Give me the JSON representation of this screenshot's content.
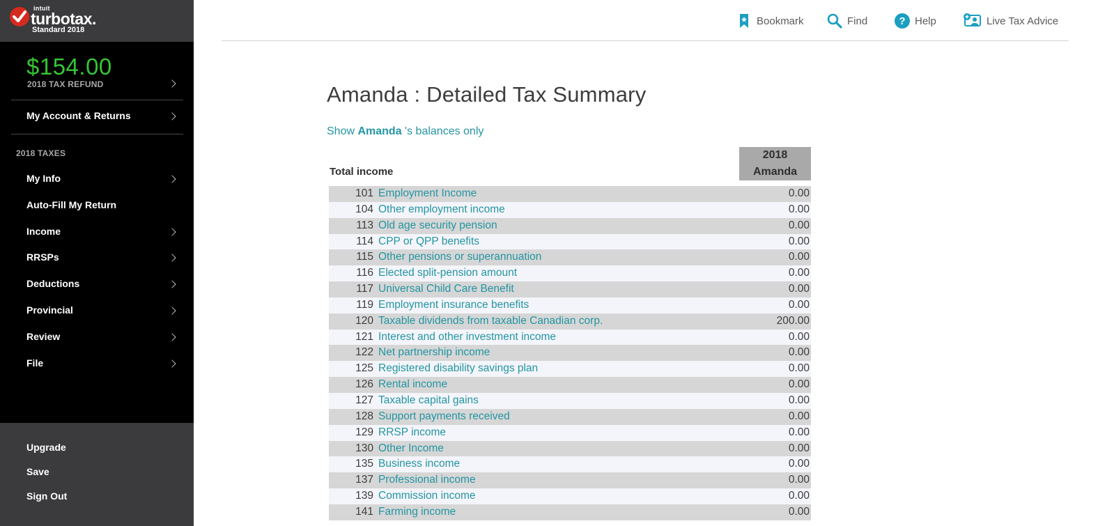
{
  "brand": {
    "intuit": "intuit",
    "product": "turbotax.",
    "edition": "Standard 2018",
    "accent_red": "#d52b1e"
  },
  "refund": {
    "amount": "$154.00",
    "label": "2018 TAX REFUND",
    "color": "#35c534"
  },
  "sidebar": {
    "account_label": "My Account & Returns",
    "section_title": "2018 TAXES",
    "items": [
      {
        "label": "My Info",
        "chevron": true
      },
      {
        "label": "Auto-Fill My Return",
        "chevron": false
      },
      {
        "label": "Income",
        "chevron": true
      },
      {
        "label": "RRSPs",
        "chevron": true
      },
      {
        "label": "Deductions",
        "chevron": true
      },
      {
        "label": "Provincial",
        "chevron": true
      },
      {
        "label": "Review",
        "chevron": true
      },
      {
        "label": "File",
        "chevron": true
      }
    ],
    "bottom": [
      {
        "label": "Upgrade"
      },
      {
        "label": "Save"
      },
      {
        "label": "Sign Out"
      }
    ]
  },
  "toolbar": {
    "bookmark": "Bookmark",
    "find": "Find",
    "help": "Help",
    "live_advice": "Live Tax Advice",
    "icon_color": "#1a9fc1"
  },
  "main": {
    "title_name": "Amanda",
    "title_sep": " : ",
    "title_rest": "Detailed Tax Summary",
    "show_prefix": "Show ",
    "show_name": "Amanda",
    "show_suffix": " 's balances only",
    "link_color": "#2495a2"
  },
  "table": {
    "section_label": "Total income",
    "column_year": "2018",
    "column_name": "Amanda",
    "rows": [
      {
        "code": "101",
        "desc": "Employment Income",
        "amount": "0.00"
      },
      {
        "code": "104",
        "desc": "Other employment income",
        "amount": "0.00"
      },
      {
        "code": "113",
        "desc": "Old age security pension",
        "amount": "0.00"
      },
      {
        "code": "114",
        "desc": "CPP or QPP benefits",
        "amount": "0.00"
      },
      {
        "code": "115",
        "desc": "Other pensions or superannuation",
        "amount": "0.00"
      },
      {
        "code": "116",
        "desc": "Elected split-pension amount",
        "amount": "0.00"
      },
      {
        "code": "117",
        "desc": "Universal Child Care Benefit",
        "amount": "0.00"
      },
      {
        "code": "119",
        "desc": "Employment insurance benefits",
        "amount": "0.00"
      },
      {
        "code": "120",
        "desc": "Taxable dividends from taxable Canadian corp.",
        "amount": "200.00"
      },
      {
        "code": "121",
        "desc": "Interest and other investment income",
        "amount": "0.00"
      },
      {
        "code": "122",
        "desc": "Net partnership income",
        "amount": "0.00"
      },
      {
        "code": "125",
        "desc": "Registered disability savings plan",
        "amount": "0.00"
      },
      {
        "code": "126",
        "desc": "Rental income",
        "amount": "0.00"
      },
      {
        "code": "127",
        "desc": "Taxable capital gains",
        "amount": "0.00"
      },
      {
        "code": "128",
        "desc": "Support payments received",
        "amount": "0.00"
      },
      {
        "code": "129",
        "desc": "RRSP income",
        "amount": "0.00"
      },
      {
        "code": "130",
        "desc": "Other Income",
        "amount": "0.00"
      },
      {
        "code": "135",
        "desc": "Business income",
        "amount": "0.00"
      },
      {
        "code": "137",
        "desc": "Professional income",
        "amount": "0.00"
      },
      {
        "code": "139",
        "desc": "Commission income",
        "amount": "0.00"
      },
      {
        "code": "141",
        "desc": "Farming income",
        "amount": "0.00"
      }
    ]
  }
}
